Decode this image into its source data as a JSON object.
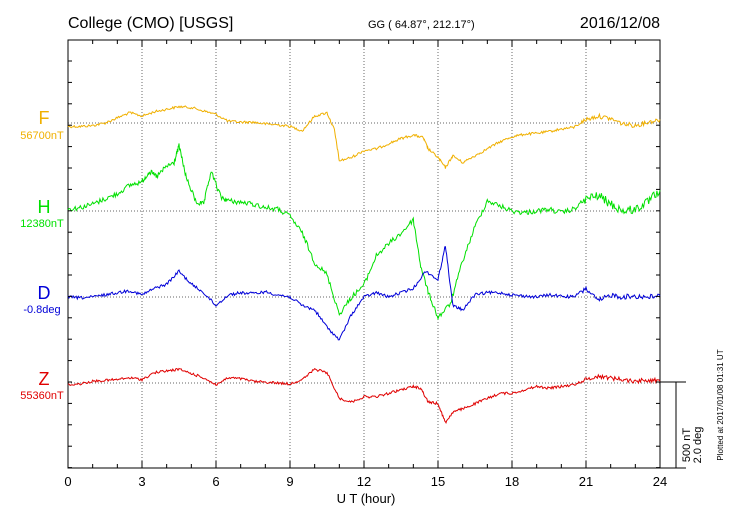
{
  "header": {
    "station": "College (CMO)  [USGS]",
    "coords": "GG ( 64.87°, 212.17°)",
    "date": "2016/12/08"
  },
  "plotted_note": "Plotted at 2017/01/08 01:31  UT",
  "scale": {
    "line1": "500 nT",
    "line2": "2.0 deg"
  },
  "colors": {
    "F": "#f0b000",
    "H": "#00e000",
    "D": "#0000d8",
    "Z": "#e00000"
  },
  "chart_data": {
    "type": "line",
    "xlabel": "U T (hour)",
    "xlim": [
      0,
      24
    ],
    "xticks": [
      0,
      3,
      6,
      9,
      12,
      15,
      18,
      21,
      24
    ],
    "ylabel": "",
    "grid": true,
    "scale_bar_nT": 500,
    "scale_bar_deg": 2.0,
    "series": [
      {
        "name": "F",
        "baseline_label": "56700nT",
        "color": "#f0b000",
        "points": [
          [
            0,
            -20
          ],
          [
            0.5,
            -20
          ],
          [
            1,
            -15
          ],
          [
            1.5,
            0
          ],
          [
            2,
            30
          ],
          [
            2.5,
            60
          ],
          [
            3,
            40
          ],
          [
            3.5,
            65
          ],
          [
            4,
            80
          ],
          [
            4.5,
            95
          ],
          [
            5,
            90
          ],
          [
            5.5,
            70
          ],
          [
            6,
            50
          ],
          [
            6.5,
            10
          ],
          [
            7,
            5
          ],
          [
            7.5,
            5
          ],
          [
            8,
            -5
          ],
          [
            8.5,
            -10
          ],
          [
            9,
            -20
          ],
          [
            9.5,
            -45
          ],
          [
            10,
            40
          ],
          [
            10.5,
            60
          ],
          [
            10.8,
            -40
          ],
          [
            11,
            -220
          ],
          [
            11.5,
            -200
          ],
          [
            12,
            -160
          ],
          [
            12.5,
            -150
          ],
          [
            13,
            -120
          ],
          [
            13.5,
            -90
          ],
          [
            14,
            -70
          ],
          [
            14.4,
            -85
          ],
          [
            14.6,
            -150
          ],
          [
            15,
            -200
          ],
          [
            15.3,
            -260
          ],
          [
            15.6,
            -190
          ],
          [
            16,
            -230
          ],
          [
            16.5,
            -190
          ],
          [
            17,
            -150
          ],
          [
            17.5,
            -110
          ],
          [
            18,
            -80
          ],
          [
            18.5,
            -65
          ],
          [
            19,
            -60
          ],
          [
            19.5,
            -50
          ],
          [
            20,
            -35
          ],
          [
            20.5,
            -25
          ],
          [
            21,
            20
          ],
          [
            21.5,
            40
          ],
          [
            22,
            25
          ],
          [
            22.5,
            -5
          ],
          [
            23,
            -15
          ],
          [
            23.5,
            5
          ],
          [
            24,
            20
          ]
        ]
      },
      {
        "name": "H",
        "baseline_label": "12380nT",
        "color": "#00e000",
        "points": [
          [
            0,
            10
          ],
          [
            0.5,
            20
          ],
          [
            1,
            40
          ],
          [
            1.5,
            70
          ],
          [
            2,
            100
          ],
          [
            2.5,
            150
          ],
          [
            3,
            170
          ],
          [
            3.3,
            230
          ],
          [
            3.6,
            200
          ],
          [
            4,
            260
          ],
          [
            4.3,
            280
          ],
          [
            4.5,
            380
          ],
          [
            4.8,
            190
          ],
          [
            5.2,
            50
          ],
          [
            5.5,
            40
          ],
          [
            5.8,
            230
          ],
          [
            6.2,
            80
          ],
          [
            6.5,
            60
          ],
          [
            7,
            50
          ],
          [
            7.5,
            40
          ],
          [
            8,
            20
          ],
          [
            8.5,
            10
          ],
          [
            9,
            -30
          ],
          [
            9.5,
            -130
          ],
          [
            10,
            -300
          ],
          [
            10.5,
            -370
          ],
          [
            11,
            -600
          ],
          [
            11.5,
            -500
          ],
          [
            12,
            -430
          ],
          [
            12.5,
            -260
          ],
          [
            13,
            -190
          ],
          [
            13.5,
            -130
          ],
          [
            14,
            -50
          ],
          [
            14.3,
            -320
          ],
          [
            14.6,
            -470
          ],
          [
            15,
            -620
          ],
          [
            15.5,
            -540
          ],
          [
            16,
            -290
          ],
          [
            16.5,
            -90
          ],
          [
            17,
            60
          ],
          [
            17.5,
            30
          ],
          [
            18,
            0
          ],
          [
            18.5,
            -10
          ],
          [
            19,
            0
          ],
          [
            19.5,
            10
          ],
          [
            20,
            -10
          ],
          [
            20.5,
            10
          ],
          [
            21,
            70
          ],
          [
            21.5,
            90
          ],
          [
            22,
            40
          ],
          [
            22.5,
            0
          ],
          [
            23,
            10
          ],
          [
            23.5,
            50
          ],
          [
            24,
            120
          ]
        ]
      },
      {
        "name": "D",
        "baseline_label": "-0.8deg",
        "color": "#0000d8",
        "points": [
          [
            0,
            0.0
          ],
          [
            0.5,
            -0.02
          ],
          [
            1,
            0.0
          ],
          [
            1.5,
            0.05
          ],
          [
            2,
            0.1
          ],
          [
            2.5,
            0.15
          ],
          [
            3,
            0.05
          ],
          [
            3.5,
            0.2
          ],
          [
            4,
            0.3
          ],
          [
            4.5,
            0.6
          ],
          [
            5,
            0.3
          ],
          [
            5.5,
            0.1
          ],
          [
            6,
            -0.2
          ],
          [
            6.5,
            0.05
          ],
          [
            7,
            0.1
          ],
          [
            7.5,
            0.08
          ],
          [
            8,
            0.12
          ],
          [
            8.5,
            0.05
          ],
          [
            9,
            0.0
          ],
          [
            9.5,
            -0.2
          ],
          [
            10,
            -0.3
          ],
          [
            10.5,
            -0.7
          ],
          [
            11,
            -1.0
          ],
          [
            11.5,
            -0.4
          ],
          [
            12,
            0.0
          ],
          [
            12.5,
            0.1
          ],
          [
            13,
            0.0
          ],
          [
            13.5,
            0.1
          ],
          [
            14,
            0.2
          ],
          [
            14.5,
            0.6
          ],
          [
            15,
            0.4
          ],
          [
            15.3,
            1.2
          ],
          [
            15.6,
            -0.2
          ],
          [
            16,
            -0.3
          ],
          [
            16.5,
            0.05
          ],
          [
            17,
            0.1
          ],
          [
            17.5,
            0.1
          ],
          [
            18,
            0.05
          ],
          [
            18.5,
            0.02
          ],
          [
            19,
            0.0
          ],
          [
            19.5,
            0.05
          ],
          [
            20,
            0.02
          ],
          [
            20.5,
            0.0
          ],
          [
            21,
            0.2
          ],
          [
            21.5,
            -0.1
          ],
          [
            22,
            0.05
          ],
          [
            22.5,
            0.0
          ],
          [
            23,
            0.02
          ],
          [
            23.5,
            0.0
          ],
          [
            24,
            0.03
          ]
        ]
      },
      {
        "name": "Z",
        "baseline_label": "55360nT",
        "color": "#e00000",
        "points": [
          [
            0,
            -10
          ],
          [
            0.5,
            -5
          ],
          [
            1,
            10
          ],
          [
            1.5,
            15
          ],
          [
            2,
            20
          ],
          [
            2.5,
            30
          ],
          [
            3,
            20
          ],
          [
            3.5,
            60
          ],
          [
            4,
            70
          ],
          [
            4.5,
            80
          ],
          [
            5,
            55
          ],
          [
            5.5,
            30
          ],
          [
            6,
            -10
          ],
          [
            6.5,
            30
          ],
          [
            7,
            25
          ],
          [
            7.5,
            10
          ],
          [
            8,
            5
          ],
          [
            8.5,
            0
          ],
          [
            9,
            -5
          ],
          [
            9.5,
            20
          ],
          [
            10,
            80
          ],
          [
            10.5,
            60
          ],
          [
            11,
            -90
          ],
          [
            11.5,
            -110
          ],
          [
            12,
            -80
          ],
          [
            12.5,
            -80
          ],
          [
            13,
            -60
          ],
          [
            13.5,
            -40
          ],
          [
            14,
            -20
          ],
          [
            14.3,
            -30
          ],
          [
            14.6,
            -110
          ],
          [
            15,
            -120
          ],
          [
            15.3,
            -230
          ],
          [
            15.6,
            -170
          ],
          [
            16,
            -150
          ],
          [
            16.5,
            -120
          ],
          [
            17,
            -90
          ],
          [
            17.5,
            -60
          ],
          [
            18,
            -60
          ],
          [
            18.5,
            -40
          ],
          [
            19,
            -20
          ],
          [
            19.5,
            -30
          ],
          [
            20,
            -20
          ],
          [
            20.5,
            -10
          ],
          [
            21,
            20
          ],
          [
            21.5,
            40
          ],
          [
            22,
            30
          ],
          [
            22.5,
            20
          ],
          [
            23,
            10
          ],
          [
            23.5,
            20
          ],
          [
            24,
            10
          ]
        ]
      }
    ]
  }
}
